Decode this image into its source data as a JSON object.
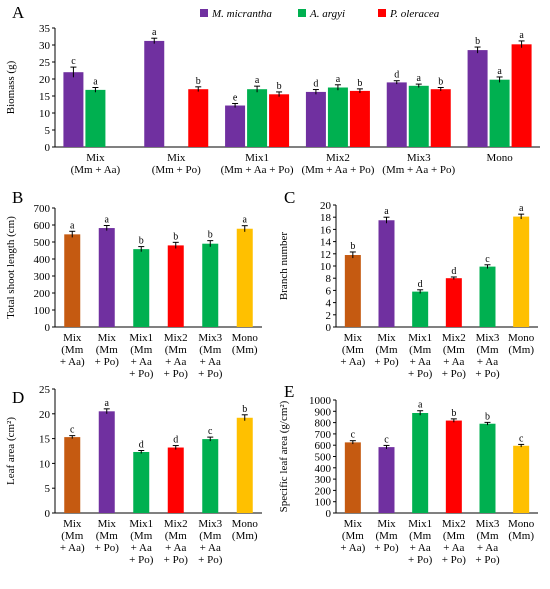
{
  "colors": {
    "Mm": "#7030A0",
    "Aa": "#00B050",
    "Po": "#FF0000",
    "Mix_brown": "#C55A11",
    "Mono_yellow": "#FFC000",
    "axis": "#000000"
  },
  "chart_data": [
    {
      "panel": "A",
      "type": "bar",
      "ylabel": "Biomass (g)",
      "ylim": [
        0,
        35
      ],
      "yticks": [
        0,
        5,
        10,
        15,
        20,
        25,
        30,
        35
      ],
      "legend_position": "top",
      "legend": [
        {
          "name": "M. micrantha",
          "color": "#7030A0"
        },
        {
          "name": "A. argyi",
          "color": "#00B050"
        },
        {
          "name": "P. oleracea",
          "color": "#FF0000"
        }
      ],
      "groups": [
        {
          "label": [
            "Mix",
            "(Mm + Aa)"
          ],
          "bars": [
            {
              "species": "M. micrantha",
              "value": 22.0,
              "err": 1.5,
              "letter": "c"
            },
            {
              "species": "A. argyi",
              "value": 16.8,
              "err": 0.7,
              "letter": "a"
            }
          ]
        },
        {
          "label": [
            "Mix",
            "(Mm + Po)"
          ],
          "bars": [
            {
              "species": "M. micrantha",
              "value": 31.2,
              "err": 0.8,
              "letter": "a"
            },
            {
              "species": "P. oleracea",
              "value": 17.0,
              "err": 0.7,
              "letter": "b"
            }
          ]
        },
        {
          "label": [
            "Mix1",
            "(Mm + Aa + Po)"
          ],
          "bars": [
            {
              "species": "M. micrantha",
              "value": 12.2,
              "err": 0.6,
              "letter": "e"
            },
            {
              "species": "A. argyi",
              "value": 17.0,
              "err": 0.9,
              "letter": "a"
            },
            {
              "species": "P. oleracea",
              "value": 15.5,
              "err": 0.7,
              "letter": "b"
            }
          ]
        },
        {
          "label": [
            "Mix2",
            "(Mm + Aa + Po)"
          ],
          "bars": [
            {
              "species": "M. micrantha",
              "value": 16.2,
              "err": 0.7,
              "letter": "d"
            },
            {
              "species": "A. argyi",
              "value": 17.5,
              "err": 0.8,
              "letter": "a"
            },
            {
              "species": "P. oleracea",
              "value": 16.5,
              "err": 0.6,
              "letter": "b"
            }
          ]
        },
        {
          "label": [
            "Mix3",
            "(Mm + Aa + Po)"
          ],
          "bars": [
            {
              "species": "M. micrantha",
              "value": 19.0,
              "err": 0.5,
              "letter": "d"
            },
            {
              "species": "A. argyi",
              "value": 18.0,
              "err": 0.5,
              "letter": "a"
            },
            {
              "species": "P. oleracea",
              "value": 17.0,
              "err": 0.5,
              "letter": "b"
            }
          ]
        },
        {
          "label": [
            "Mono",
            ""
          ],
          "bars": [
            {
              "species": "M. micrantha",
              "value": 28.5,
              "err": 0.9,
              "letter": "b"
            },
            {
              "species": "A. argyi",
              "value": 19.8,
              "err": 0.8,
              "letter": "a"
            },
            {
              "species": "P. oleracea",
              "value": 30.2,
              "err": 1.0,
              "letter": "a"
            }
          ]
        }
      ]
    },
    {
      "panel": "B",
      "type": "bar",
      "ylabel": "Total shoot length (cm)",
      "ylim": [
        0,
        700
      ],
      "yticks": [
        0,
        100,
        200,
        300,
        400,
        500,
        600,
        700
      ],
      "categories": [
        [
          "Mix",
          "(Mm",
          "+ Aa)"
        ],
        [
          "Mix",
          "(Mm",
          "+ Po)"
        ],
        [
          "Mix1",
          "(Mm",
          "+ Aa",
          "+ Po)"
        ],
        [
          "Mix2",
          "(Mm",
          "+ Aa",
          "+ Po)"
        ],
        [
          "Mix3",
          "(Mm",
          "+ Aa",
          "+ Po)"
        ],
        [
          "Mono",
          "(Mm)"
        ]
      ],
      "values": [
        545,
        582,
        458,
        480,
        490,
        578
      ],
      "errors": [
        18,
        15,
        15,
        18,
        18,
        18
      ],
      "letters": [
        "a",
        "a",
        "b",
        "b",
        "b",
        "a"
      ],
      "colors": [
        "#C55A11",
        "#7030A0",
        "#00B050",
        "#FF0000",
        "#00B050",
        "#FFC000"
      ]
    },
    {
      "panel": "C",
      "type": "bar",
      "ylabel": "Branch number",
      "ylim": [
        0,
        20
      ],
      "yticks": [
        0,
        2,
        4,
        6,
        8,
        10,
        12,
        14,
        16,
        18,
        20
      ],
      "categories": [
        [
          "Mix",
          "(Mm",
          "+ Aa)"
        ],
        [
          "Mix",
          "(Mm",
          "+ Po)"
        ],
        [
          "Mix1",
          "(Mm",
          "+ Aa",
          "+ Po)"
        ],
        [
          "Mix2",
          "(Mm",
          "+ Aa",
          "+ Po)"
        ],
        [
          "Mix3",
          "(Mm",
          "+ Aa",
          "+ Po)"
        ],
        [
          "Mono",
          "(Mm)"
        ]
      ],
      "values": [
        11.8,
        17.5,
        5.8,
        8.0,
        9.9,
        18.1
      ],
      "errors": [
        0.5,
        0.5,
        0.3,
        0.2,
        0.3,
        0.4
      ],
      "letters": [
        "b",
        "a",
        "d",
        "d",
        "c",
        "a"
      ],
      "colors": [
        "#C55A11",
        "#7030A0",
        "#00B050",
        "#FF0000",
        "#00B050",
        "#FFC000"
      ]
    },
    {
      "panel": "D",
      "type": "bar",
      "ylabel": "Leaf area (cm²)",
      "ylim": [
        0,
        25
      ],
      "yticks": [
        0,
        5,
        10,
        15,
        20,
        25
      ],
      "categories": [
        [
          "Mix",
          "(Mm",
          "+ Aa)"
        ],
        [
          "Mix",
          "(Mm",
          "+ Po)"
        ],
        [
          "Mix1",
          "(Mm",
          "+ Aa",
          "+ Po)"
        ],
        [
          "Mix2",
          "(Mm",
          "+ Aa",
          "+ Po)"
        ],
        [
          "Mix3",
          "(Mm",
          "+ Aa",
          "+ Po)"
        ],
        [
          "Mono",
          "(Mm)"
        ]
      ],
      "values": [
        15.3,
        20.5,
        12.3,
        13.2,
        14.9,
        19.2
      ],
      "errors": [
        0.3,
        0.5,
        0.3,
        0.4,
        0.4,
        0.6
      ],
      "letters": [
        "c",
        "a",
        "d",
        "d",
        "c",
        "b"
      ],
      "colors": [
        "#C55A11",
        "#7030A0",
        "#00B050",
        "#FF0000",
        "#00B050",
        "#FFC000"
      ]
    },
    {
      "panel": "E",
      "type": "bar",
      "ylabel": "Specific leaf area (g/cm²)",
      "ylim": [
        0,
        1000
      ],
      "yticks": [
        0,
        100,
        200,
        300,
        400,
        500,
        600,
        700,
        800,
        900,
        1000
      ],
      "categories": [
        [
          "Mix",
          "(Mm",
          "+ Aa)"
        ],
        [
          "Mix",
          "(Mm",
          "+ Po)"
        ],
        [
          "Mix1",
          "(Mm",
          "+ Aa",
          "+ Po)"
        ],
        [
          "Mix2",
          "(Mm",
          "+ Aa",
          "+ Po)"
        ],
        [
          "Mix3",
          "(Mm",
          "+ Aa",
          "+ Po)"
        ],
        [
          "Mono",
          "(Mm)"
        ]
      ],
      "values": [
        625,
        583,
        885,
        818,
        790,
        595
      ],
      "errors": [
        15,
        15,
        20,
        15,
        12,
        12
      ],
      "letters": [
        "c",
        "c",
        "a",
        "b",
        "b",
        "c"
      ],
      "colors": [
        "#C55A11",
        "#7030A0",
        "#00B050",
        "#FF0000",
        "#00B050",
        "#FFC000"
      ]
    }
  ]
}
